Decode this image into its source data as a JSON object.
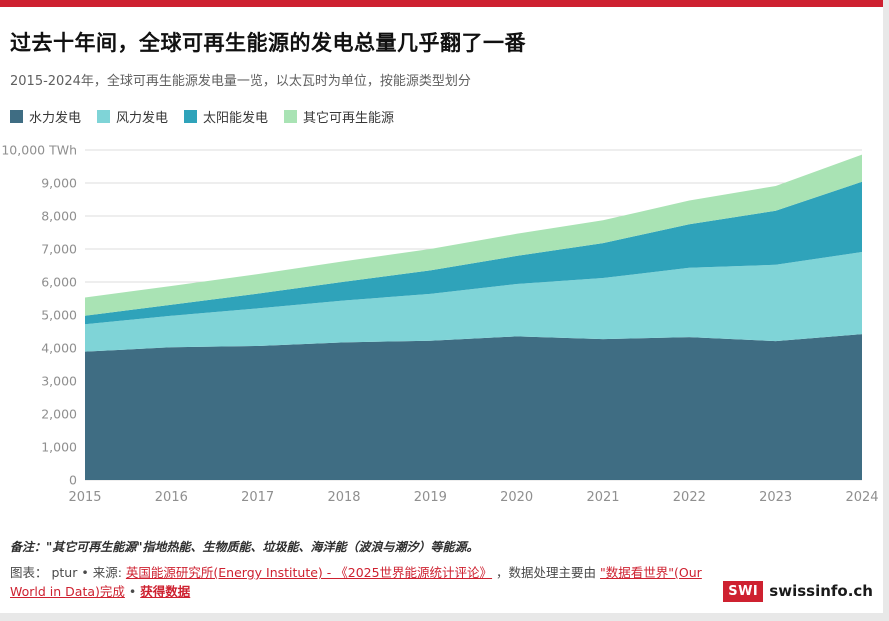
{
  "colors": {
    "accent": "#ce2130",
    "grid": "#dcdcdc",
    "axis_text": "#8f8f8f"
  },
  "header": {
    "title": "过去十年间，全球可再生能源的发电总量几乎翻了一番",
    "subtitle": "2015-2024年，全球可再生能源发电量一览，以太瓦时为单位，按能源类型划分"
  },
  "chart_data": {
    "type": "area",
    "stacked": true,
    "title": "过去十年间，全球可再生能源的发电总量几乎翻了一番",
    "x": [
      2015,
      2016,
      2017,
      2018,
      2019,
      2020,
      2021,
      2022,
      2023,
      2024
    ],
    "series": [
      {
        "key": "hydro",
        "name": "水力发电",
        "color": "#3f6d83",
        "values": [
          3890,
          4020,
          4060,
          4170,
          4220,
          4350,
          4270,
          4330,
          4210,
          4420
        ]
      },
      {
        "key": "wind",
        "name": "风力发电",
        "color": "#7fd4d7",
        "values": [
          830,
          960,
          1140,
          1270,
          1420,
          1590,
          1850,
          2100,
          2310,
          2490
        ]
      },
      {
        "key": "solar",
        "name": "太阳能发电",
        "color": "#2fa3ba",
        "values": [
          260,
          330,
          450,
          570,
          710,
          850,
          1060,
          1320,
          1640,
          2130
        ]
      },
      {
        "key": "other",
        "name": "其它可再生能源",
        "color": "#a9e3b4",
        "values": [
          550,
          570,
          590,
          620,
          650,
          670,
          690,
          720,
          750,
          820
        ]
      }
    ],
    "ylim": [
      0,
      10000
    ],
    "ytick_step": 1000,
    "ytick_labels": [
      "0",
      "1,000",
      "2,000",
      "3,000",
      "4,000",
      "5,000",
      "6,000",
      "7,000",
      "8,000",
      "9,000",
      "10,000 TWh"
    ],
    "unit": "TWh",
    "grid": true,
    "legend_position": "top"
  },
  "footer": {
    "note": "备注：\"其它可再生能源\"指地热能、生物质能、垃圾能、海洋能（波浪与潮汐）等能源。",
    "credit": {
      "prefix": "图表： ptur • 来源: ",
      "link1": "英国能源研究所(Energy Institute) - 《2025世界能源统计评论》",
      "middle": "，数据处理主要由",
      "link2": "\"数据看世界\"(Our World in Data)完成",
      "separator": " • ",
      "link3": "获得数据"
    },
    "logo": {
      "box": "SWI",
      "text": "swissinfo.ch"
    }
  }
}
